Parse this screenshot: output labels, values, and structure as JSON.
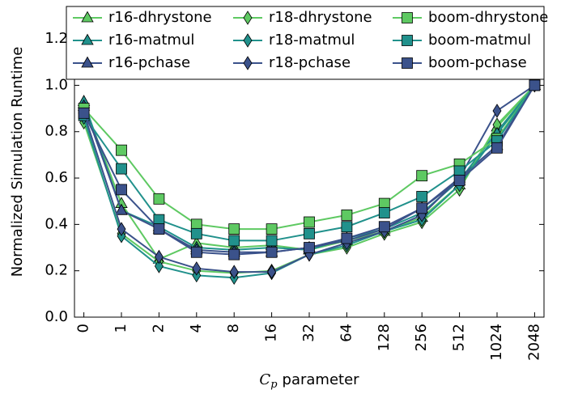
{
  "chart_data": {
    "type": "line",
    "y_label": "Normalized Simulation Runtime",
    "x_label": {
      "symbol": "C",
      "subscript": "p",
      "text": "parameter"
    },
    "categories": [
      "0",
      "1",
      "2",
      "4",
      "8",
      "16",
      "32",
      "64",
      "128",
      "256",
      "512",
      "1024",
      "2048"
    ],
    "ylim": [
      0,
      1.34
    ],
    "yticks": [
      {
        "value": 0,
        "label": "0.0"
      },
      {
        "value": 0.2,
        "label": "0.2"
      },
      {
        "value": 0.4,
        "label": "0.4"
      },
      {
        "value": 0.6,
        "label": "0.6"
      },
      {
        "value": 0.8,
        "label": "0.8"
      },
      {
        "value": 1,
        "label": "1.0"
      },
      {
        "value": 1.2,
        "label": "1.2"
      }
    ],
    "legend": "upper center",
    "series": [
      {
        "name": "r16-dhrystone",
        "color": "#5ec962",
        "marker": "triangle",
        "values": [
          0.92,
          0.49,
          0.25,
          0.32,
          0.3,
          0.31,
          0.29,
          0.33,
          0.37,
          0.43,
          0.57,
          0.82,
          1.0
        ]
      },
      {
        "name": "r16-matmul",
        "color": "#21918c",
        "marker": "triangle",
        "values": [
          0.93,
          0.46,
          0.39,
          0.3,
          0.29,
          0.3,
          0.29,
          0.34,
          0.38,
          0.45,
          0.59,
          0.8,
          1.0
        ]
      },
      {
        "name": "r16-pchase",
        "color": "#3b528b",
        "marker": "triangle",
        "values": [
          0.91,
          0.46,
          0.38,
          0.29,
          0.28,
          0.28,
          0.3,
          0.33,
          0.38,
          0.47,
          0.6,
          0.74,
          1.0
        ]
      },
      {
        "name": "r18-dhrystone",
        "color": "#5ec962",
        "marker": "diamond",
        "values": [
          0.84,
          0.36,
          0.24,
          0.2,
          0.19,
          0.2,
          0.27,
          0.3,
          0.36,
          0.41,
          0.55,
          0.83,
          1.0
        ]
      },
      {
        "name": "r18-matmul",
        "color": "#21918c",
        "marker": "diamond",
        "values": [
          0.86,
          0.35,
          0.22,
          0.18,
          0.17,
          0.19,
          0.27,
          0.31,
          0.37,
          0.42,
          0.57,
          0.79,
          1.0
        ]
      },
      {
        "name": "r18-pchase",
        "color": "#3b528b",
        "marker": "diamond",
        "values": [
          0.88,
          0.38,
          0.26,
          0.21,
          0.195,
          0.195,
          0.27,
          0.32,
          0.37,
          0.44,
          0.6,
          0.89,
          1.0
        ]
      },
      {
        "name": "boom-dhrystone",
        "color": "#5ec962",
        "marker": "square",
        "values": [
          0.9,
          0.72,
          0.51,
          0.4,
          0.38,
          0.38,
          0.41,
          0.44,
          0.49,
          0.61,
          0.66,
          0.77,
          1.0
        ]
      },
      {
        "name": "boom-matmul",
        "color": "#21918c",
        "marker": "square",
        "values": [
          0.87,
          0.64,
          0.42,
          0.36,
          0.33,
          0.33,
          0.36,
          0.39,
          0.45,
          0.52,
          0.63,
          0.76,
          1.0
        ]
      },
      {
        "name": "boom-pchase",
        "color": "#3b528b",
        "marker": "square",
        "values": [
          0.88,
          0.55,
          0.38,
          0.28,
          0.27,
          0.28,
          0.3,
          0.34,
          0.39,
          0.47,
          0.59,
          0.73,
          1.0
        ]
      }
    ]
  }
}
